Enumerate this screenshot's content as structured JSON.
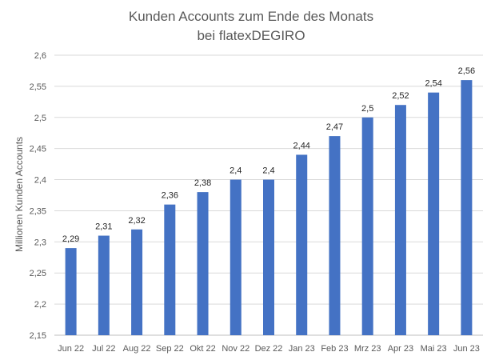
{
  "chart_data": {
    "type": "bar",
    "title_line1": "Kunden Accounts zum Ende des Monats",
    "title_line2": "bei flatexDEGIRO",
    "xlabel": "",
    "ylabel": "Millionen Kunden Accounts",
    "categories": [
      "Jun 22",
      "Jul 22",
      "Aug 22",
      "Sep 22",
      "Okt 22",
      "Nov 22",
      "Dez 22",
      "Jan 23",
      "Feb 23",
      "Mrz 23",
      "Apr 23",
      "Mai 23",
      "Jun 23"
    ],
    "values": [
      2.29,
      2.31,
      2.32,
      2.36,
      2.38,
      2.4,
      2.4,
      2.44,
      2.47,
      2.5,
      2.52,
      2.54,
      2.56
    ],
    "value_labels": [
      "2,29",
      "2,31",
      "2,32",
      "2,36",
      "2,38",
      "2,4",
      "2,4",
      "2,44",
      "2,47",
      "2,5",
      "2,52",
      "2,54",
      "2,56"
    ],
    "ylim": [
      2.15,
      2.6
    ],
    "yticks": [
      2.15,
      2.2,
      2.25,
      2.3,
      2.35,
      2.4,
      2.45,
      2.5,
      2.55,
      2.6
    ],
    "ytick_labels": [
      "2,15",
      "2,2",
      "2,25",
      "2,3",
      "2,35",
      "2,4",
      "2,45",
      "2,5",
      "2,55",
      "2,6"
    ],
    "grid": true,
    "legend": "none",
    "colors": {
      "bar": "#4472C4",
      "grid": "#D9D9D9"
    }
  }
}
